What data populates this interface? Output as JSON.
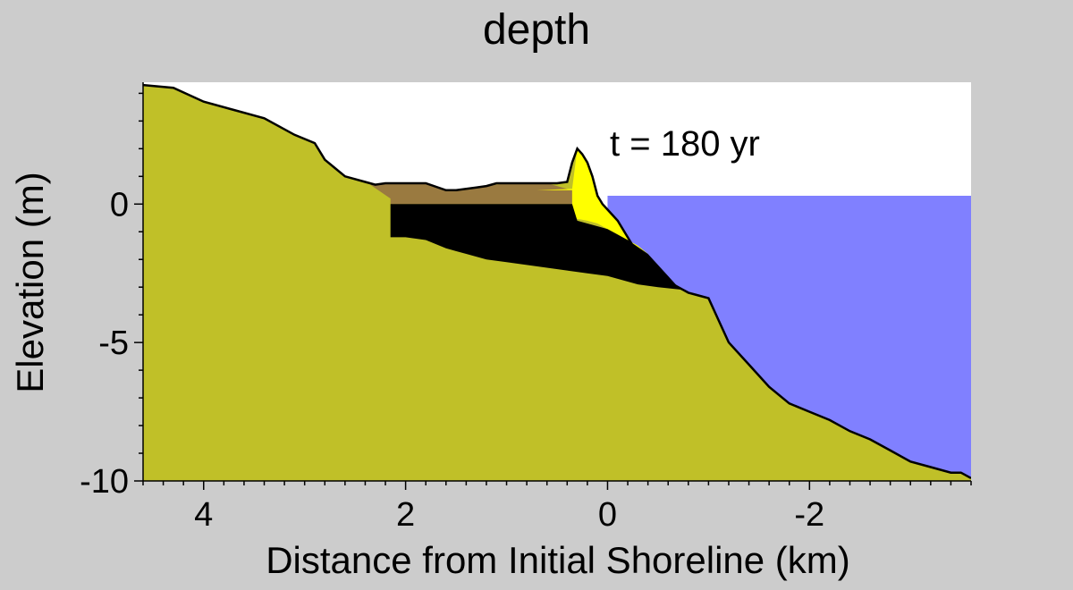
{
  "chart_data": {
    "type": "area",
    "title": "depth",
    "xlabel": "Distance from Initial Shoreline (km)",
    "ylabel": "Elevation (m)",
    "annotation": "t = 180 yr",
    "xlim": [
      4.6,
      -3.6
    ],
    "ylim": [
      -10,
      4.4
    ],
    "x_ticks": [
      4,
      2,
      0,
      -2
    ],
    "x_tick_labels": [
      "4",
      "2",
      "0",
      "-2"
    ],
    "y_ticks": [
      0,
      -5,
      -10
    ],
    "y_tick_labels": [
      "0",
      "-5",
      "-10"
    ],
    "sea_level": 0.3,
    "colors": {
      "background": "#cccccc",
      "air": "#ffffff",
      "water": "#8080ff",
      "substrate": "#c0c028",
      "marsh_sediment": "#9a7a40",
      "lagoon_mud": "#000000",
      "sand": "#ffff00",
      "surface_line": "#000000"
    },
    "surface_profile": {
      "x": [
        4.6,
        4.3,
        4.0,
        3.7,
        3.4,
        3.1,
        2.9,
        2.8,
        2.7,
        2.6,
        2.4,
        2.3,
        2.2,
        2.0,
        1.8,
        1.6,
        1.5,
        1.4,
        1.3,
        1.2,
        1.1,
        1.0,
        0.9,
        0.8,
        0.6,
        0.5,
        0.4,
        0.35,
        0.3,
        0.25,
        0.2,
        0.15,
        0.1,
        0.05,
        0.0,
        -0.1,
        -0.2,
        -0.3,
        -0.4,
        -0.5,
        -0.6,
        -0.7,
        -0.8,
        -0.9,
        -1.0,
        -1.1,
        -1.2,
        -1.4,
        -1.6,
        -1.8,
        -2.0,
        -2.2,
        -2.4,
        -2.6,
        -2.8,
        -3.0,
        -3.2,
        -3.4,
        -3.5,
        -3.6
      ],
      "y": [
        4.3,
        4.2,
        3.7,
        3.4,
        3.1,
        2.5,
        2.2,
        1.6,
        1.3,
        1.0,
        0.8,
        0.7,
        0.75,
        0.75,
        0.75,
        0.5,
        0.5,
        0.55,
        0.6,
        0.65,
        0.75,
        0.75,
        0.75,
        0.75,
        0.75,
        0.75,
        0.8,
        1.5,
        2.0,
        1.8,
        1.5,
        1.0,
        0.3,
        0.0,
        -0.2,
        -0.6,
        -1.2,
        -1.8,
        -2.3,
        -2.6,
        -2.8,
        -3.0,
        -3.2,
        -3.3,
        -3.4,
        -4.2,
        -5.0,
        -5.8,
        -6.6,
        -7.2,
        -7.5,
        -7.8,
        -8.2,
        -8.5,
        -8.9,
        -9.3,
        -9.5,
        -9.7,
        -9.7,
        -9.9
      ]
    },
    "layers": [
      {
        "name": "marsh_sediment",
        "polygon": {
          "x": [
            2.35,
            2.2,
            2.0,
            1.8,
            1.6,
            1.4,
            1.2,
            1.0,
            0.8,
            0.6,
            0.35,
            0.35,
            2.15,
            2.15,
            2.35
          ],
          "y": [
            0.7,
            0.75,
            0.75,
            0.75,
            0.5,
            0.55,
            0.65,
            0.75,
            0.75,
            0.75,
            0.5,
            0.0,
            0.0,
            0.2,
            0.7
          ]
        }
      },
      {
        "name": "sand",
        "polygon": {
          "x": [
            0.7,
            0.35,
            0.3,
            0.25,
            0.2,
            0.15,
            0.1,
            0.05,
            0.0,
            -0.1,
            -0.2,
            -0.3,
            -0.4,
            -0.5,
            -0.6,
            -0.7,
            -0.6,
            -0.5,
            -0.4,
            -0.3,
            -0.2,
            -0.1,
            0.0,
            0.1,
            0.2,
            0.35,
            0.35,
            0.7
          ],
          "y": [
            0.5,
            0.55,
            2.0,
            1.8,
            1.5,
            1.0,
            0.3,
            0.0,
            -0.2,
            -0.6,
            -1.2,
            -1.8,
            -2.3,
            -2.6,
            -2.8,
            -3.0,
            -2.8,
            -2.4,
            -1.8,
            -1.5,
            -1.3,
            -1.1,
            -0.9,
            -0.7,
            -0.6,
            -0.5,
            0.5,
            0.5
          ]
        }
      },
      {
        "name": "lagoon_mud",
        "polygon": {
          "x": [
            2.2,
            2.0,
            1.8,
            1.6,
            1.4,
            1.2,
            1.0,
            0.8,
            0.6,
            0.35,
            0.3,
            0.2,
            0.0,
            -0.2,
            -0.4,
            -0.6,
            -0.7,
            -0.75,
            -0.5,
            -0.3,
            -0.2,
            0.0,
            0.2,
            0.4,
            0.6,
            0.8,
            1.0,
            1.2,
            1.4,
            1.6,
            1.8,
            2.0,
            2.15,
            2.15,
            2.2
          ],
          "y": [
            0.0,
            0.0,
            0.0,
            0.0,
            0.0,
            0.0,
            0.0,
            0.0,
            0.0,
            0.0,
            -0.6,
            -0.7,
            -0.9,
            -1.3,
            -1.8,
            -2.6,
            -3.0,
            -3.1,
            -3.0,
            -2.9,
            -2.8,
            -2.6,
            -2.5,
            -2.4,
            -2.3,
            -2.2,
            -2.1,
            -2.0,
            -1.8,
            -1.6,
            -1.3,
            -1.2,
            -1.2,
            0.0,
            0.0
          ]
        }
      }
    ]
  }
}
